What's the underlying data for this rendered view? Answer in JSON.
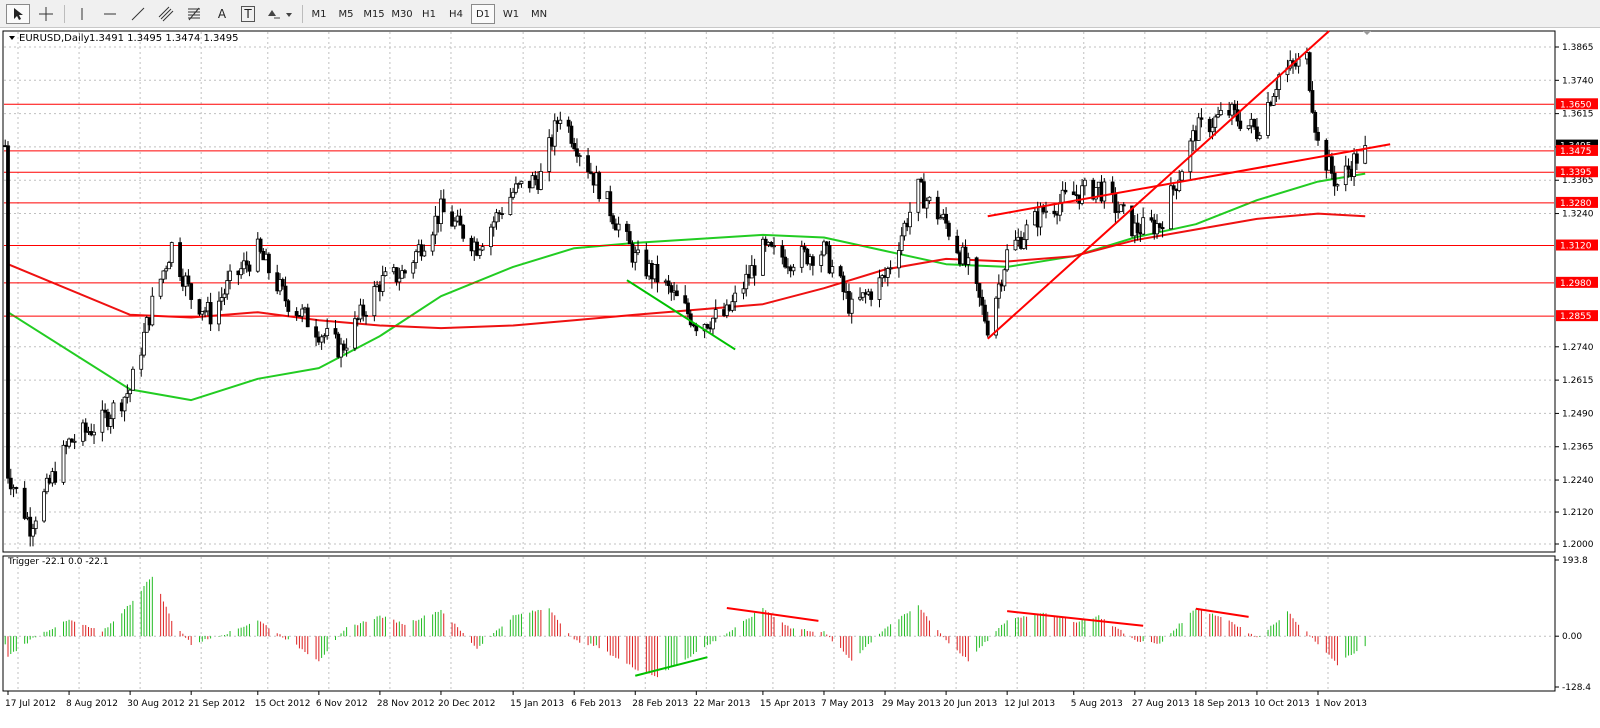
{
  "toolbar": {
    "tools": [
      {
        "name": "cursor-tool",
        "icon": "arrow-cursor-icon"
      },
      {
        "name": "crosshair-tool",
        "icon": "crosshair-icon"
      },
      {
        "name": "vertical-line-tool",
        "icon": "vertical-line-icon"
      },
      {
        "name": "horizontal-line-tool",
        "icon": "horizontal-line-icon"
      },
      {
        "name": "trendline-tool",
        "icon": "trendline-icon"
      },
      {
        "name": "equidistant-channel-tool",
        "icon": "channel-icon"
      },
      {
        "name": "fibonacci-tool",
        "icon": "fibonacci-icon"
      },
      {
        "name": "text-tool",
        "icon": "text-icon",
        "label": "A"
      },
      {
        "name": "text-label-tool",
        "icon": "text-label-icon",
        "label": "T"
      },
      {
        "name": "arrows-tool",
        "icon": "arrows-icon"
      }
    ],
    "timeframes": [
      "M1",
      "M5",
      "M15",
      "M30",
      "H1",
      "H4",
      "D1",
      "W1",
      "MN"
    ],
    "active_timeframe": "D1"
  },
  "chart_header": {
    "symbol": "EURUSD,Daily",
    "values": "1.3491 1.3495 1.3474 1.3495"
  },
  "indicator_header": {
    "name": "Trigger",
    "values": "-22.1 0.0 -22.1"
  },
  "price_axis": {
    "ticks": [
      "1.3865",
      "1.3740",
      "1.3615",
      "1.3490",
      "1.3365",
      "1.3240",
      "1.2740",
      "1.2615",
      "1.2490",
      "1.2365",
      "1.2240",
      "1.2120",
      "1.2000"
    ],
    "current_price_label": "1.3495",
    "level_labels": [
      "1.3650",
      "1.3475",
      "1.3395",
      "1.3280",
      "1.3120",
      "1.2980",
      "1.2855"
    ]
  },
  "indicator_axis": {
    "ticks": [
      "193.8",
      "0.00",
      "-128.4"
    ]
  },
  "time_axis": {
    "labels": [
      "17 Jul 2012",
      "8 Aug 2012",
      "30 Aug 2012",
      "21 Sep 2012",
      "15 Oct 2012",
      "6 Nov 2012",
      "28 Nov 2012",
      "20 Dec 2012",
      "15 Jan 2013",
      "6 Feb 2013",
      "28 Feb 2013",
      "22 Mar 2013",
      "15 Apr 2013",
      "7 May 2013",
      "29 May 2013",
      "20 Jun 2013",
      "12 Jul 2013",
      "5 Aug 2013",
      "27 Aug 2013",
      "18 Sep 2013",
      "10 Oct 2013",
      "1 Nov 2013"
    ]
  },
  "chart_data": {
    "type": "candlestick",
    "symbol": "EURUSD",
    "timeframe": "Daily",
    "last_ohlc": {
      "open": 1.3491,
      "high": 1.3495,
      "low": 1.3474,
      "close": 1.3495
    },
    "price_range": [
      1.2,
      1.392
    ],
    "price_path": [
      [
        "17 Jul 2012",
        1.227
      ],
      [
        "25 Jul 2012",
        1.207
      ],
      [
        "8 Aug 2012",
        1.238
      ],
      [
        "20 Aug 2012",
        1.246
      ],
      [
        "30 Aug 2012",
        1.258
      ],
      [
        "7 Sep 2012",
        1.29
      ],
      [
        "14 Sep 2012",
        1.312
      ],
      [
        "21 Sep 2012",
        1.293
      ],
      [
        "28 Sep 2012",
        1.286
      ],
      [
        "5 Oct 2012",
        1.298
      ],
      [
        "15 Oct 2012",
        1.31
      ],
      [
        "25 Oct 2012",
        1.292
      ],
      [
        "6 Nov 2012",
        1.28
      ],
      [
        "14 Nov 2012",
        1.273
      ],
      [
        "28 Nov 2012",
        1.298
      ],
      [
        "7 Dec 2012",
        1.302
      ],
      [
        "20 Dec 2012",
        1.325
      ],
      [
        "2 Jan 2013",
        1.312
      ],
      [
        "15 Jan 2013",
        1.332
      ],
      [
        "25 Jan 2013",
        1.338
      ],
      [
        "1 Feb 2013",
        1.362
      ],
      [
        "6 Feb 2013",
        1.352
      ],
      [
        "14 Feb 2013",
        1.336
      ],
      [
        "28 Feb 2013",
        1.307
      ],
      [
        "8 Mar 2013",
        1.3
      ],
      [
        "22 Mar 2013",
        1.283
      ],
      [
        "2 Apr 2013",
        1.286
      ],
      [
        "15 Apr 2013",
        1.31
      ],
      [
        "25 Apr 2013",
        1.307
      ],
      [
        "7 May 2013",
        1.31
      ],
      [
        "17 May 2013",
        1.288
      ],
      [
        "29 May 2013",
        1.3
      ],
      [
        "10 Jun 2013",
        1.333
      ],
      [
        "20 Jun 2013",
        1.32
      ],
      [
        "28 Jun 2013",
        1.303
      ],
      [
        "5 Jul 2013",
        1.282
      ],
      [
        "12 Jul 2013",
        1.309
      ],
      [
        "25 Jul 2013",
        1.325
      ],
      [
        "5 Aug 2013",
        1.331
      ],
      [
        "14 Aug 2013",
        1.334
      ],
      [
        "27 Aug 2013",
        1.318
      ],
      [
        "5 Sep 2013",
        1.32
      ],
      [
        "18 Sep 2013",
        1.355
      ],
      [
        "30 Sep 2013",
        1.362
      ],
      [
        "10 Oct 2013",
        1.355
      ],
      [
        "18 Oct 2013",
        1.376
      ],
      [
        "28 Oct 2013",
        1.382
      ],
      [
        "1 Nov 2013",
        1.35
      ],
      [
        "8 Nov 2013",
        1.335
      ],
      [
        "18 Nov 2013",
        1.3495
      ]
    ],
    "ma_green": [
      [
        "17 Jul 2012",
        1.287
      ],
      [
        "30 Aug 2012",
        1.258
      ],
      [
        "21 Sep 2012",
        1.254
      ],
      [
        "15 Oct 2012",
        1.262
      ],
      [
        "6 Nov 2012",
        1.266
      ],
      [
        "28 Nov 2012",
        1.278
      ],
      [
        "20 Dec 2012",
        1.293
      ],
      [
        "15 Jan 2013",
        1.304
      ],
      [
        "6 Feb 2013",
        1.311
      ],
      [
        "28 Feb 2013",
        1.313
      ],
      [
        "15 Apr 2013",
        1.316
      ],
      [
        "7 May 2013",
        1.315
      ],
      [
        "29 May 2013",
        1.31
      ],
      [
        "20 Jun 2013",
        1.305
      ],
      [
        "12 Jul 2013",
        1.304
      ],
      [
        "5 Aug 2013",
        1.308
      ],
      [
        "27 Aug 2013",
        1.315
      ],
      [
        "18 Sep 2013",
        1.32
      ],
      [
        "10 Oct 2013",
        1.329
      ],
      [
        "1 Nov 2013",
        1.336
      ],
      [
        "18 Nov 2013",
        1.339
      ]
    ],
    "ma_red": [
      [
        "17 Jul 2012",
        1.305
      ],
      [
        "30 Aug 2012",
        1.286
      ],
      [
        "21 Sep 2012",
        1.285
      ],
      [
        "15 Oct 2012",
        1.287
      ],
      [
        "6 Nov 2012",
        1.284
      ],
      [
        "28 Nov 2012",
        1.282
      ],
      [
        "20 Dec 2012",
        1.281
      ],
      [
        "15 Jan 2013",
        1.282
      ],
      [
        "6 Feb 2013",
        1.284
      ],
      [
        "28 Feb 2013",
        1.286
      ],
      [
        "15 Apr 2013",
        1.29
      ],
      [
        "7 May 2013",
        1.296
      ],
      [
        "29 May 2013",
        1.303
      ],
      [
        "20 Jun 2013",
        1.307
      ],
      [
        "12 Jul 2013",
        1.306
      ],
      [
        "5 Aug 2013",
        1.308
      ],
      [
        "27 Aug 2013",
        1.314
      ],
      [
        "18 Sep 2013",
        1.318
      ],
      [
        "10 Oct 2013",
        1.322
      ],
      [
        "1 Nov 2013",
        1.324
      ],
      [
        "18 Nov 2013",
        1.323
      ]
    ],
    "horizontal_levels": [
      1.365,
      1.3475,
      1.3395,
      1.328,
      1.312,
      1.298,
      1.2855
    ],
    "trendlines": [
      {
        "from": [
          "5 Jul 2013",
          1.277
        ],
        "to": [
          "5 Nov 2013",
          1.3925
        ],
        "color": "#ff0000"
      },
      {
        "from": [
          "5 Jul 2013",
          1.323
        ],
        "to": [
          "27 Nov 2013",
          1.35
        ],
        "color": "#ff0000"
      },
      {
        "from": [
          "25 Feb 2013",
          1.299
        ],
        "to": [
          "5 Apr 2013",
          1.273
        ],
        "color": "#00c000"
      }
    ],
    "indicator": {
      "name": "Trigger",
      "range": [
        -128.4,
        193.8
      ],
      "segments": [
        [
          "17 Jul 2012",
          -50
        ],
        [
          "27 Jul 2012",
          0
        ],
        [
          "8 Aug 2012",
          40
        ],
        [
          "20 Aug 2012",
          10
        ],
        [
          "30 Aug 2012",
          80
        ],
        [
          "7 Sep 2012",
          150
        ],
        [
          "14 Sep 2012",
          40
        ],
        [
          "21 Sep 2012",
          -20
        ],
        [
          "5 Oct 2012",
          10
        ],
        [
          "15 Oct 2012",
          40
        ],
        [
          "26 Oct 2012",
          -10
        ],
        [
          "6 Nov 2012",
          -60
        ],
        [
          "16 Nov 2012",
          20
        ],
        [
          "28 Nov 2012",
          50
        ],
        [
          "7 Dec 2012",
          30
        ],
        [
          "20 Dec 2012",
          65
        ],
        [
          "2 Jan 2013",
          -30
        ],
        [
          "15 Jan 2013",
          50
        ],
        [
          "28 Jan 2013",
          70
        ],
        [
          "6 Feb 2013",
          -10
        ],
        [
          "14 Feb 2013",
          -25
        ],
        [
          "28 Feb 2013",
          -80
        ],
        [
          "8 Mar 2013",
          -100
        ],
        [
          "22 Mar 2013",
          -40
        ],
        [
          "5 Apr 2013",
          20
        ],
        [
          "15 Apr 2013",
          70
        ],
        [
          "25 Apr 2013",
          20
        ],
        [
          "7 May 2013",
          10
        ],
        [
          "17 May 2013",
          -60
        ],
        [
          "29 May 2013",
          20
        ],
        [
          "10 Jun 2013",
          75
        ],
        [
          "20 Jun 2013",
          -10
        ],
        [
          "28 Jun 2013",
          -60
        ],
        [
          "12 Jul 2013",
          40
        ],
        [
          "25 Jul 2013",
          60
        ],
        [
          "5 Aug 2013",
          35
        ],
        [
          "14 Aug 2013",
          50
        ],
        [
          "27 Aug 2013",
          -10
        ],
        [
          "5 Sep 2013",
          -20
        ],
        [
          "18 Sep 2013",
          70
        ],
        [
          "30 Sep 2013",
          40
        ],
        [
          "10 Oct 2013",
          -5
        ],
        [
          "21 Oct 2013",
          60
        ],
        [
          "1 Nov 2013",
          -20
        ],
        [
          "8 Nov 2013",
          -70
        ],
        [
          "18 Nov 2013",
          -22
        ]
      ],
      "trendlines": [
        {
          "from": [
            "2 Apr 2013",
            70
          ],
          "to": [
            "5 May 2013",
            38
          ],
          "color": "#ff0000"
        },
        {
          "from": [
            "12 Jul 2013",
            62
          ],
          "to": [
            "30 Aug 2013",
            26
          ],
          "color": "#ff0000"
        },
        {
          "from": [
            "18 Sep 2013",
            68
          ],
          "to": [
            "7 Oct 2013",
            48
          ],
          "color": "#ff0000"
        },
        {
          "from": [
            "28 Feb 2013",
            -98
          ],
          "to": [
            "26 Mar 2013",
            -52
          ],
          "color": "#00c000"
        }
      ]
    },
    "colors": {
      "bull": "#00a000",
      "bear": "#000000",
      "ma_fast": "#22cc22",
      "ma_slow": "#ee1111",
      "level": "#ff0000",
      "grid": "#c0c0c0",
      "indicator_pos": "#22bb22",
      "indicator_neg": "#dd2222"
    }
  }
}
